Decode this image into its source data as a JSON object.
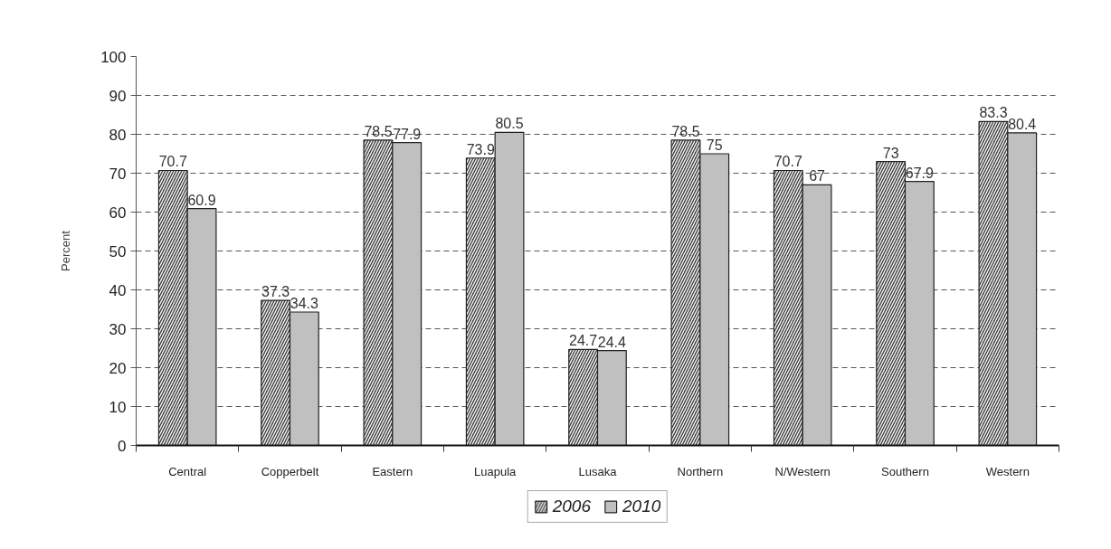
{
  "chart_data": {
    "type": "bar",
    "ylabel": "Percent",
    "categories": [
      "Central",
      "Copperbelt",
      "Eastern",
      "Luapula",
      "Lusaka",
      "Northern",
      "N/Western",
      "Southern",
      "Western"
    ],
    "series": [
      {
        "name": "2006",
        "color": "#404040",
        "values": [
          70.7,
          37.3,
          78.5,
          73.9,
          24.7,
          78.5,
          70.7,
          73,
          83.3
        ]
      },
      {
        "name": "2010",
        "color": "#c0c0c0",
        "values": [
          60.9,
          34.3,
          77.9,
          80.5,
          24.4,
          75,
          67,
          67.9,
          80.4
        ]
      }
    ],
    "ylim": [
      0,
      100
    ],
    "yticks": [
      0,
      10,
      20,
      30,
      40,
      50,
      60,
      70,
      80,
      90,
      100
    ],
    "grid": "y",
    "legend": "bottom",
    "data_labels": true
  }
}
